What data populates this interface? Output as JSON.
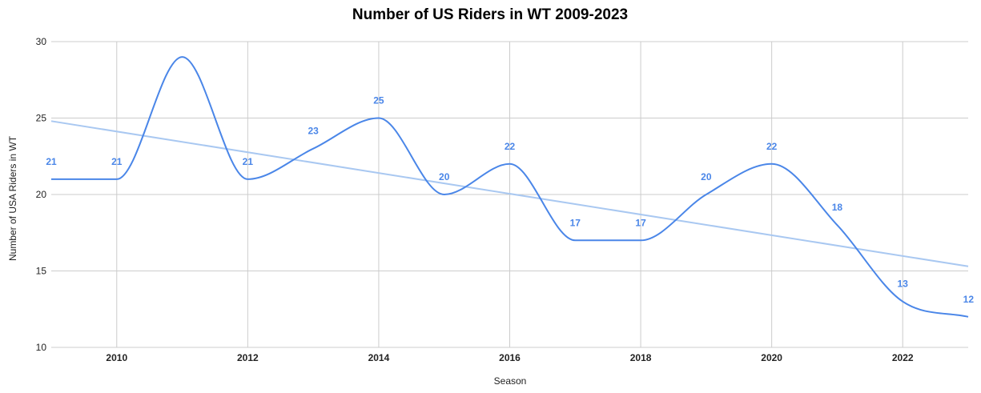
{
  "chart_data": {
    "type": "line",
    "title": "Number of US Riders in WT 2009-2023",
    "xlabel": "Season",
    "ylabel": "Number of USA Riders in WT",
    "x": [
      2009,
      2010,
      2011,
      2012,
      2013,
      2014,
      2015,
      2016,
      2017,
      2018,
      2019,
      2020,
      2021,
      2022,
      2023
    ],
    "series": [
      {
        "values": [
          21,
          21,
          29,
          21,
          23,
          25,
          20,
          22,
          17,
          17,
          20,
          22,
          18,
          13,
          12
        ],
        "data_labels": [
          "21",
          "21",
          "",
          "21",
          "23",
          "25",
          "20",
          "22",
          "17",
          "17",
          "20",
          "22",
          "18",
          "13",
          "12"
        ],
        "color": "#4a86e8",
        "smooth": true
      }
    ],
    "trendline": {
      "type": "linear",
      "start": 24.8,
      "end": 15.3,
      "color": "#a9c8f1"
    },
    "xlim": [
      2009,
      2023
    ],
    "ylim": [
      10,
      30
    ],
    "xticks": [
      "2010",
      "2012",
      "2014",
      "2016",
      "2018",
      "2020",
      "2022"
    ],
    "yticks": [
      "10",
      "15",
      "20",
      "25",
      "30"
    ],
    "grid": true,
    "legend": "none"
  }
}
